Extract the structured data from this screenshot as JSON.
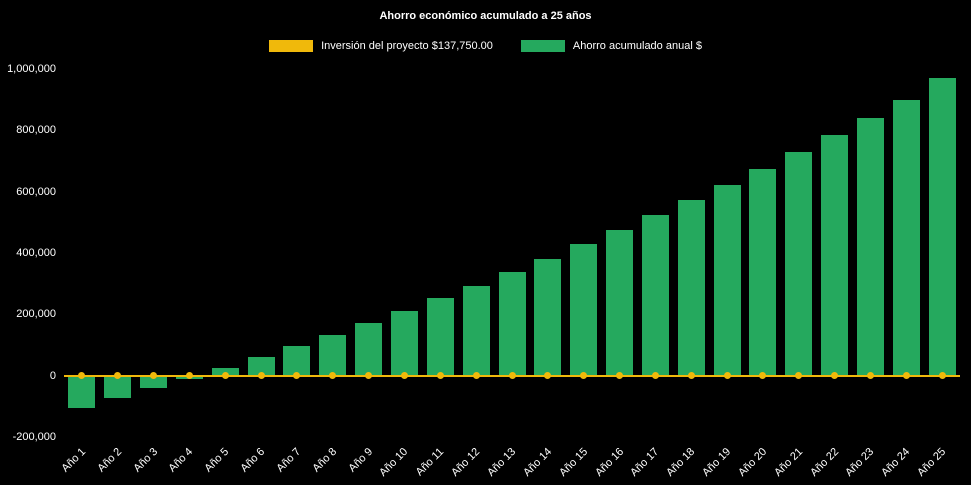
{
  "title": "Ahorro económico acumulado a 25 años",
  "legend": [
    {
      "label": "Inversión del proyecto $137,750.00",
      "color": "#F0B90B"
    },
    {
      "label": "Ahorro acumulado anual $",
      "color": "#25A95E"
    }
  ],
  "chart_data": {
    "type": "bar",
    "title": "Ahorro económico acumulado a 25 años",
    "background": "#000000",
    "grid": false,
    "legend_position": "top",
    "ylim": [
      -200000,
      1000000
    ],
    "yticks": [
      -200000,
      0,
      200000,
      400000,
      600000,
      800000,
      1000000
    ],
    "categories": [
      "Año 1",
      "Año 2",
      "Año 3",
      "Año 4",
      "Año 5",
      "Año 6",
      "Año 7",
      "Año 8",
      "Año 9",
      "Año 10",
      "Año 11",
      "Año 12",
      "Año 13",
      "Año 14",
      "Año 15",
      "Año 16",
      "Año 17",
      "Año 18",
      "Año 19",
      "Año 20",
      "Año 21",
      "Año 22",
      "Año 23",
      "Año 24",
      "Año 25"
    ],
    "series": [
      {
        "name": "Inversión del proyecto $137,750.00",
        "type": "line",
        "color": "#F0B90B",
        "marker": "circle",
        "note": "flat horizontal line with dot markers drawn at the 0 level",
        "values": [
          0,
          0,
          0,
          0,
          0,
          0,
          0,
          0,
          0,
          0,
          0,
          0,
          0,
          0,
          0,
          0,
          0,
          0,
          0,
          0,
          0,
          0,
          0,
          0,
          0
        ]
      },
      {
        "name": "Ahorro acumulado anual $",
        "type": "bar",
        "color": "#25A95E",
        "values": [
          -105000,
          -72000,
          -40000,
          -10000,
          25000,
          60000,
          97000,
          134000,
          172000,
          211000,
          252000,
          294000,
          337000,
          382000,
          428000,
          475000,
          523000,
          572000,
          623000,
          675000,
          729000,
          784000,
          841000,
          900000,
          970000
        ]
      }
    ]
  }
}
